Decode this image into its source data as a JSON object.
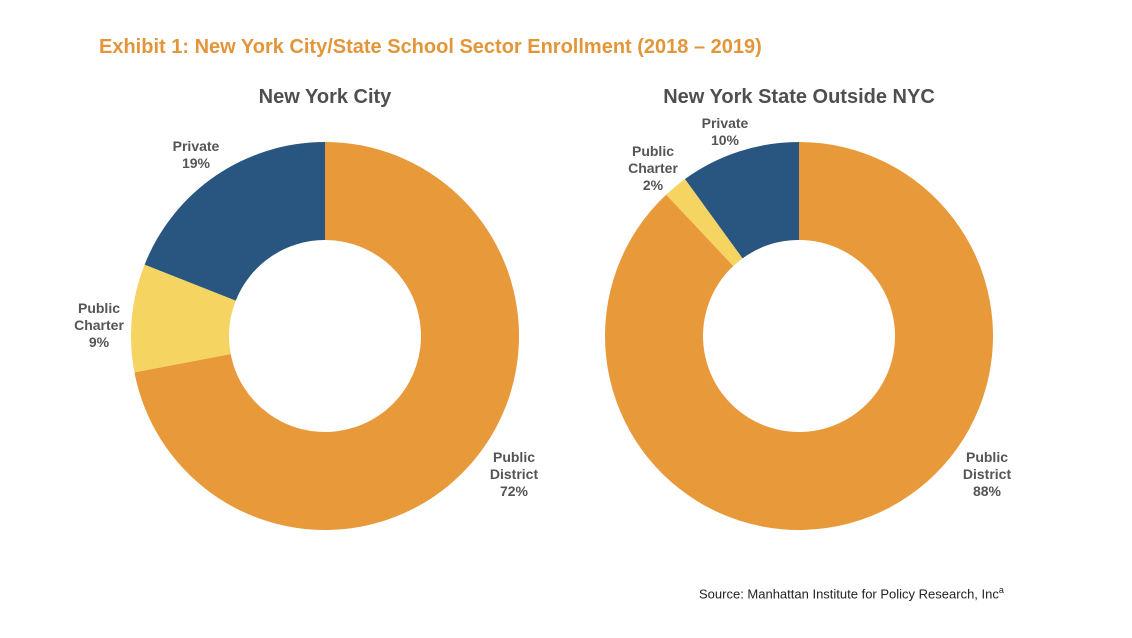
{
  "exhibit_title": "Exhibit 1: New York City/State School Sector Enrollment (2018 – 2019)",
  "source": {
    "text": "Source: Manhattan Institute for Policy Research, Inc",
    "superscript": "a"
  },
  "colors": {
    "title": "#e3953a",
    "public_district": "#e8993a",
    "public_charter": "#f6d462",
    "private": "#285680",
    "chart_title": "#4f4f4f",
    "label": "#555555"
  },
  "chart_data": [
    {
      "type": "pie",
      "donut": true,
      "title": "New York City",
      "slices": [
        {
          "name": "Public District",
          "label_lines": [
            "Public",
            "District",
            "72%"
          ],
          "value": 72,
          "color": "#e8993a"
        },
        {
          "name": "Public Charter",
          "label_lines": [
            "Public",
            "Charter",
            "9%"
          ],
          "value": 9,
          "color": "#f6d462"
        },
        {
          "name": "Private",
          "label_lines": [
            "Private",
            "19%"
          ],
          "value": 19,
          "color": "#285680"
        }
      ]
    },
    {
      "type": "pie",
      "donut": true,
      "title": "New York State Outside NYC",
      "slices": [
        {
          "name": "Public District",
          "label_lines": [
            "Public",
            "District",
            "88%"
          ],
          "value": 88,
          "color": "#e8993a"
        },
        {
          "name": "Public Charter",
          "label_lines": [
            "Public",
            "Charter",
            "2%"
          ],
          "value": 2,
          "color": "#f6d462"
        },
        {
          "name": "Private",
          "label_lines": [
            "Private",
            "10%"
          ],
          "value": 10,
          "color": "#285680"
        }
      ]
    }
  ]
}
